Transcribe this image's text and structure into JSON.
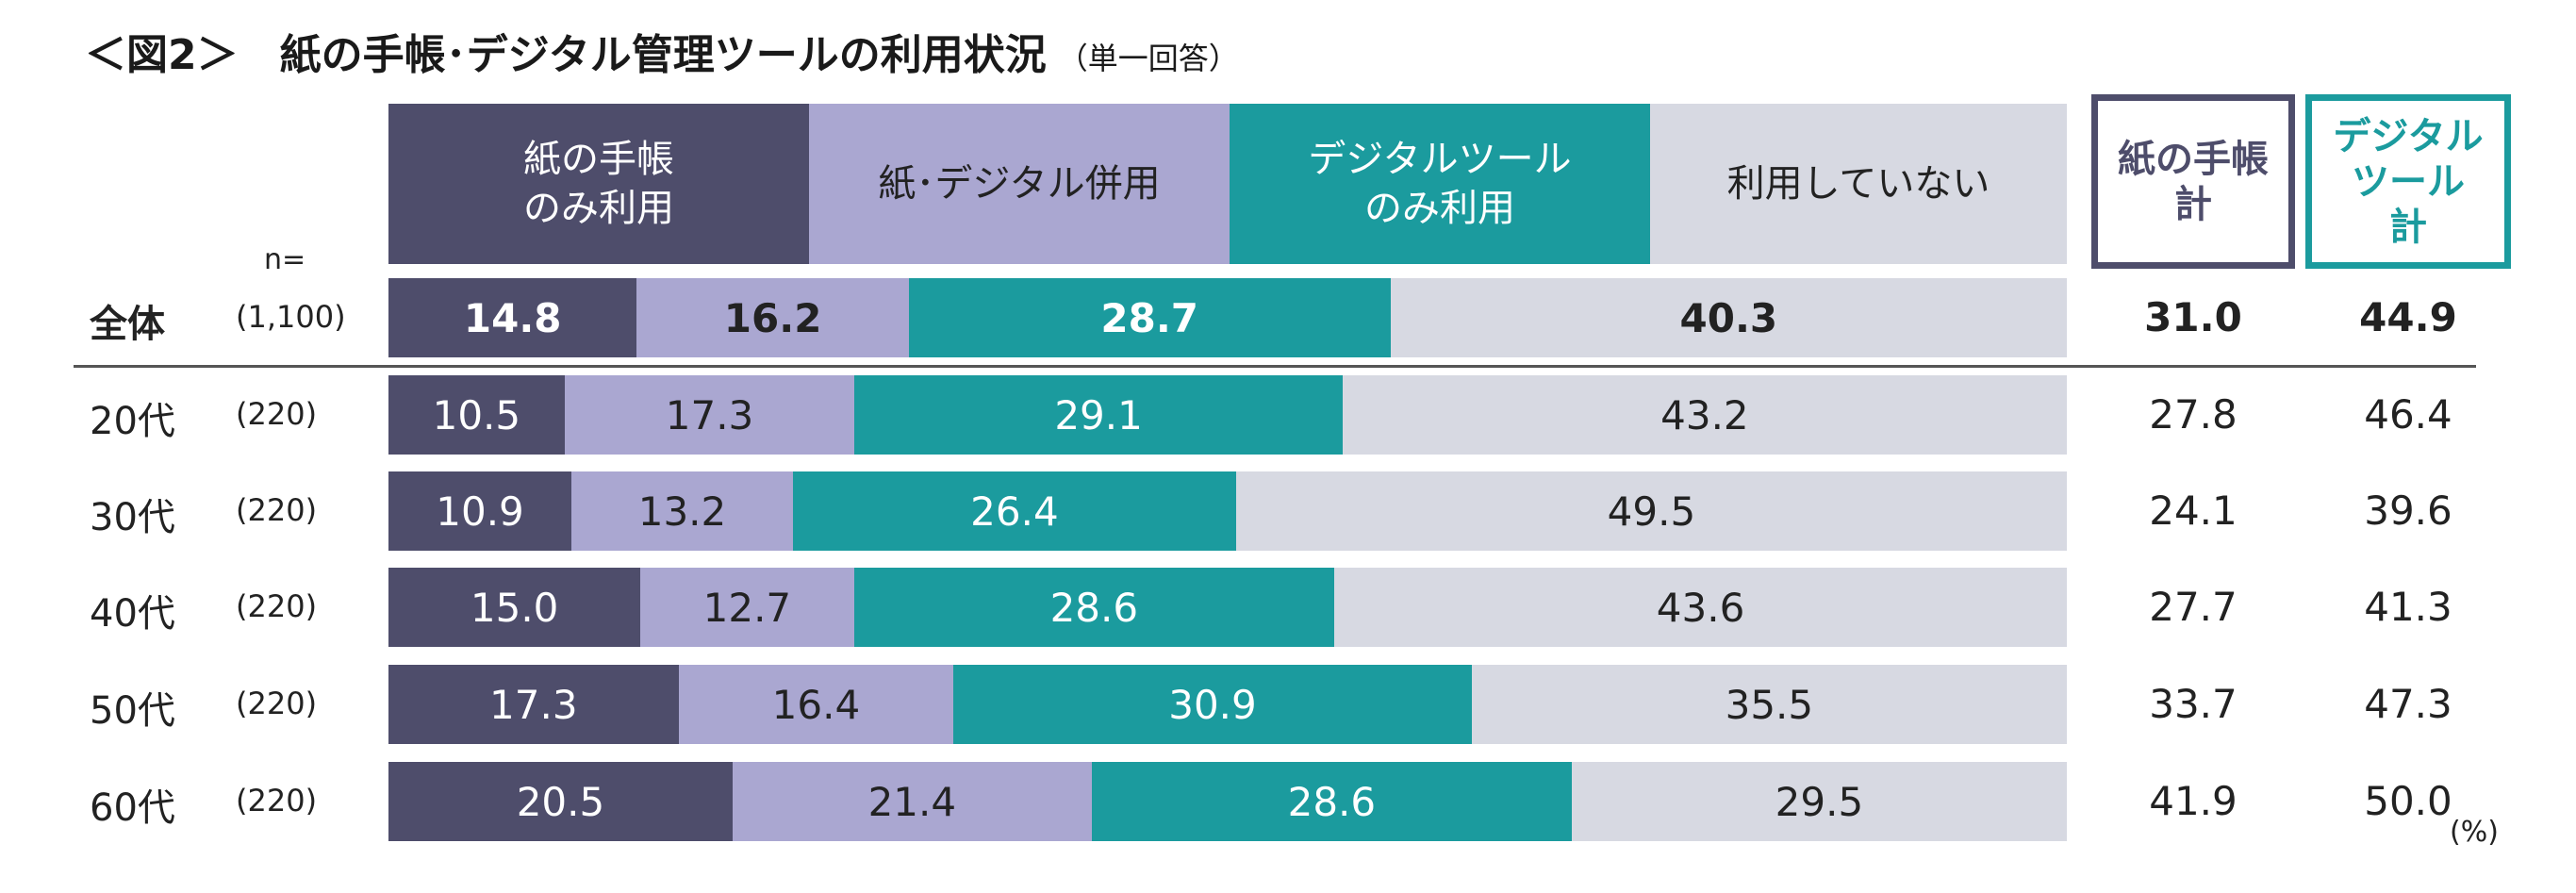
{
  "title": "＜図2＞　紙の手帳･デジタル管理ツールの利用状況",
  "subtitle": "（単一回答）",
  "n_label": "n=",
  "unit": "(%)",
  "colors": {
    "paper_only": "#4e4d6b",
    "both": "#aaa7d1",
    "digital_only": "#1b9b9e",
    "none": "#d7d9e2"
  },
  "legend": [
    {
      "label": "紙の手帳\nのみ利用"
    },
    {
      "label": "紙･デジタル併用"
    },
    {
      "label": "デジタルツール\nのみ利用"
    },
    {
      "label": "利用していない"
    }
  ],
  "summary_headers": [
    {
      "label": "紙の手帳\n計"
    },
    {
      "label": "デジタル\nツール\n計"
    }
  ],
  "chart_data": {
    "type": "bar",
    "orientation": "horizontal",
    "stacked": true,
    "percent": true,
    "categories": [
      "全体",
      "20代",
      "30代",
      "40代",
      "50代",
      "60代"
    ],
    "sample_sizes": [
      "(1,100)",
      "(220)",
      "(220)",
      "(220)",
      "(220)",
      "(220)"
    ],
    "series": [
      {
        "name": "紙の手帳のみ利用",
        "values": [
          14.8,
          10.5,
          10.9,
          15.0,
          17.3,
          20.5
        ]
      },
      {
        "name": "紙･デジタル併用",
        "values": [
          16.2,
          17.3,
          13.2,
          12.7,
          16.4,
          21.4
        ]
      },
      {
        "name": "デジタルツールのみ利用",
        "values": [
          28.7,
          29.1,
          26.4,
          28.6,
          30.9,
          28.6
        ]
      },
      {
        "name": "利用していない",
        "values": [
          40.3,
          43.2,
          49.5,
          43.6,
          35.5,
          29.5
        ]
      }
    ],
    "totals": {
      "紙の手帳計": [
        31.0,
        27.8,
        24.1,
        27.7,
        33.7,
        41.9
      ],
      "デジタルツール計": [
        44.9,
        46.4,
        39.6,
        41.3,
        47.3,
        50.0
      ]
    },
    "xlim": [
      0,
      100
    ],
    "legend_position": "top"
  }
}
